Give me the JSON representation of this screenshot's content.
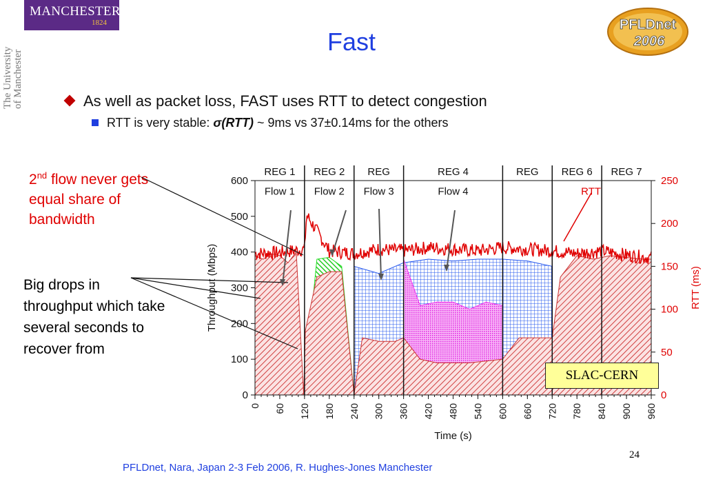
{
  "logo_left": {
    "wordmark": "MANCHESTER",
    "year": "1824",
    "university_text": "The University of Manchester",
    "color": "#5b2a86"
  },
  "logo_right": {
    "line1": "PFLDnet",
    "line2": "2006"
  },
  "title": "Fast",
  "bullets": {
    "level1": "As well as packet loss, FAST uses RTT to detect congestion",
    "level2_prefix": "RTT is very stable: ",
    "level2_sigma": "σ(RTT)",
    "level2_suffix": " ~ 9ms vs 37±0.14ms for the others"
  },
  "annotations": {
    "flow_never_sup": "nd",
    "flow_never_num": "2",
    "flow_never_rest": " flow never gets equal share of bandwidth",
    "big_drops": "Big drops in throughput which take several seconds to recover from",
    "slac_cern": "SLAC-CERN"
  },
  "footer": "PFLDnet, Nara, Japan 2-3 Feb 2006,  R. Hughes-Jones  Manchester",
  "page_number": "24",
  "colors": {
    "title": "#1f3fe0",
    "rtt": "#e00000",
    "flow1": "#cc3333",
    "flow2": "#22dd22",
    "flow3": "#2255ee",
    "flow4": "#ee33ee"
  },
  "chart_data": {
    "type": "area",
    "xlabel": "Time (s)",
    "ylabel": "Throughput (Mbps)",
    "y2label": "RTT (ms)",
    "xlim": [
      0,
      960
    ],
    "ylim": [
      0,
      600
    ],
    "y2lim": [
      0,
      250
    ],
    "x_ticks": [
      "0",
      "60",
      "120",
      "180",
      "240",
      "300",
      "360",
      "420",
      "480",
      "540",
      "600",
      "660",
      "720",
      "780",
      "840",
      "900",
      "960"
    ],
    "y_ticks": [
      "0",
      "100",
      "200",
      "300",
      "400",
      "500",
      "600"
    ],
    "y2_ticks": [
      "0",
      "50",
      "100",
      "150",
      "200",
      "250"
    ],
    "regions": [
      {
        "label": "REG 1",
        "boundary_end": 120
      },
      {
        "label": "REG 2",
        "boundary_end": 240
      },
      {
        "label": "REG",
        "boundary_end": 360
      },
      {
        "label": "REG 4",
        "boundary_end": 600
      },
      {
        "label": "REG",
        "boundary_end": 720
      },
      {
        "label": "REG 6",
        "boundary_end": 840
      },
      {
        "label": "REG 7",
        "boundary_end": 960
      }
    ],
    "flow_labels": [
      "Flow 1",
      "Flow 2",
      "Flow 3",
      "Flow 4"
    ],
    "rtt_label": "RTT",
    "series": [
      {
        "name": "RTT",
        "axis": "right",
        "color": "#e00000",
        "x": [
          0,
          60,
          120,
          125,
          180,
          240,
          300,
          360,
          420,
          480,
          540,
          600,
          660,
          720,
          780,
          840,
          900,
          960
        ],
        "values": [
          165,
          166,
          170,
          210,
          168,
          165,
          170,
          168,
          172,
          170,
          168,
          172,
          170,
          168,
          165,
          168,
          163,
          160
        ]
      },
      {
        "name": "Flow 1",
        "color": "#cc3333",
        "x": [
          0,
          20,
          40,
          60,
          80,
          100,
          118,
          122,
          150,
          180,
          210,
          240,
          260,
          300,
          340,
          360,
          400,
          440,
          480,
          520,
          560,
          600,
          640,
          680,
          720,
          740,
          780,
          820,
          860,
          900,
          940,
          960
        ],
        "values": [
          390,
          380,
          395,
          390,
          370,
          400,
          0,
          180,
          330,
          345,
          345,
          0,
          160,
          150,
          150,
          160,
          100,
          90,
          90,
          90,
          95,
          100,
          160,
          160,
          160,
          330,
          390,
          380,
          390,
          385,
          380,
          380
        ]
      },
      {
        "name": "Flow 2",
        "color": "#22dd22",
        "x": [
          120,
          150,
          180,
          210,
          240
        ],
        "values": [
          30,
          380,
          385,
          360,
          0
        ]
      },
      {
        "name": "Flow 3",
        "color": "#2255ee",
        "x": [
          240,
          300,
          360,
          420,
          480,
          540,
          600,
          660,
          720
        ],
        "values": [
          360,
          340,
          370,
          380,
          375,
          380,
          380,
          375,
          360
        ]
      },
      {
        "name": "Flow 4",
        "color": "#ee33ee",
        "x": [
          360,
          400,
          440,
          480,
          520,
          560,
          600
        ],
        "values": [
          380,
          250,
          260,
          260,
          240,
          260,
          250
        ]
      }
    ]
  }
}
